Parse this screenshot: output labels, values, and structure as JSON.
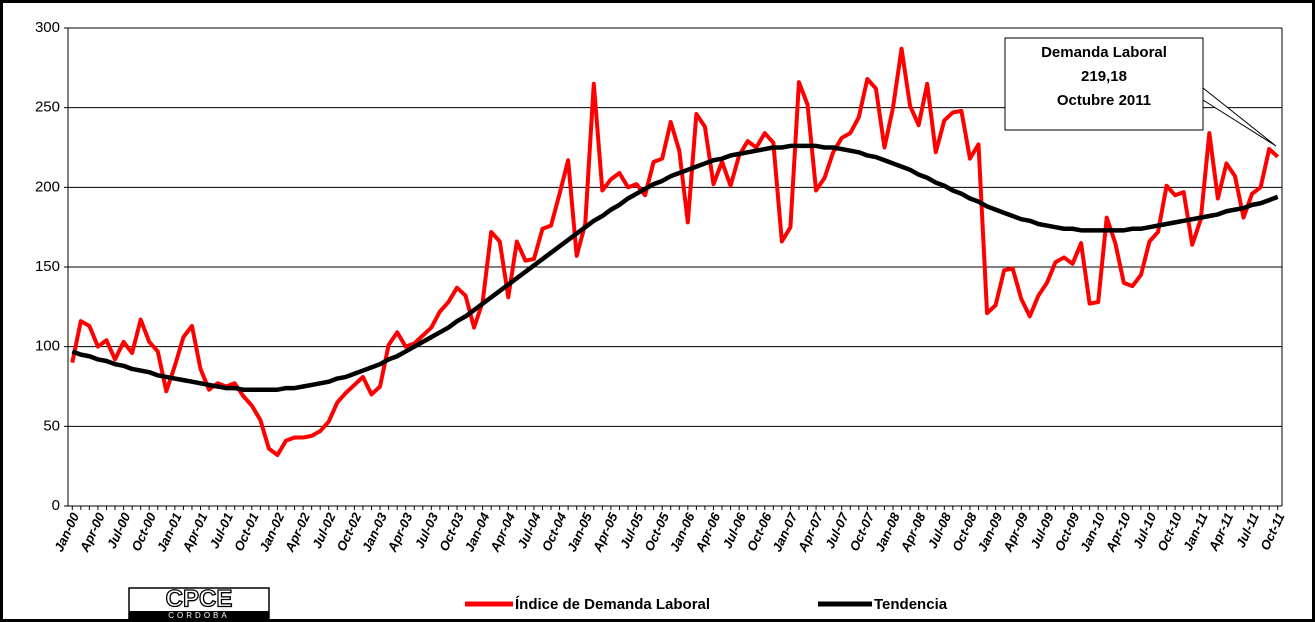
{
  "chart_data": {
    "type": "line",
    "categories": [
      "Jan-00",
      null,
      null,
      "Apr-00",
      null,
      null,
      "Jul-00",
      null,
      null,
      "Oct-00",
      null,
      null,
      "Jan-01",
      null,
      null,
      "Apr-01",
      null,
      null,
      "Jul-01",
      null,
      null,
      "Oct-01",
      null,
      null,
      "Jan-02",
      null,
      null,
      "Apr-02",
      null,
      null,
      "Jul-02",
      null,
      null,
      "Oct-02",
      null,
      null,
      "Jan-03",
      null,
      null,
      "Apr-03",
      null,
      null,
      "Jul-03",
      null,
      null,
      "Oct-03",
      null,
      null,
      "Jan-04",
      null,
      null,
      "Apr-04",
      null,
      null,
      "Jul-04",
      null,
      null,
      "Oct-04",
      null,
      null,
      "Jan-05",
      null,
      null,
      "Apr-05",
      null,
      null,
      "Jul-05",
      null,
      null,
      "Oct-05",
      null,
      null,
      "Jan-06",
      null,
      null,
      "Apr-06",
      null,
      null,
      "Jul-06",
      null,
      null,
      "Oct-06",
      null,
      null,
      "Jan-07",
      null,
      null,
      "Apr-07",
      null,
      null,
      "Jul-07",
      null,
      null,
      "Oct-07",
      null,
      null,
      "Jan-08",
      null,
      null,
      "Apr-08",
      null,
      null,
      "Jul-08",
      null,
      null,
      "Oct-08",
      null,
      null,
      "Jan-09",
      null,
      null,
      "Apr-09",
      null,
      null,
      "Jul-09",
      null,
      null,
      "Oct-09",
      null,
      null,
      "Jan-10",
      null,
      null,
      "Apr-10",
      null,
      null,
      "Jul-10",
      null,
      null,
      "Oct-10",
      null,
      null,
      "Jan-11",
      null,
      null,
      "Apr-11",
      null,
      null,
      "Jul-11",
      null,
      null,
      "Oct-11"
    ],
    "series": [
      {
        "name": "Índice de Demanda Laboral",
        "color": "#ff0000",
        "values": [
          90,
          116,
          113,
          100,
          104,
          92,
          103,
          96,
          117,
          103,
          97,
          72,
          88,
          106,
          113,
          86,
          73,
          77,
          75,
          77,
          69,
          63,
          54,
          36,
          32,
          41,
          43,
          43,
          44,
          47,
          53,
          65,
          71,
          76,
          81,
          70,
          75,
          101,
          109,
          100,
          102,
          107,
          112,
          122,
          128,
          137,
          132,
          112,
          128,
          172,
          166,
          131,
          166,
          154,
          155,
          174,
          176,
          196,
          217,
          157,
          177,
          265,
          198,
          205,
          209,
          200,
          202,
          195,
          216,
          218,
          241,
          223,
          178,
          246,
          238,
          202,
          216,
          201,
          220,
          229,
          225,
          234,
          228,
          166,
          175,
          266,
          252,
          198,
          206,
          222,
          231,
          234,
          244,
          268,
          262,
          225,
          250,
          287,
          251,
          239,
          265,
          222,
          242,
          247,
          248,
          218,
          227,
          121,
          126,
          148,
          149,
          130,
          119,
          132,
          140,
          153,
          156,
          152,
          165,
          127,
          128,
          181,
          165,
          140,
          138,
          145,
          166,
          172,
          201,
          195,
          197,
          164,
          180,
          234,
          193,
          215,
          207,
          181,
          196,
          200,
          224,
          219.18
        ]
      },
      {
        "name": "Tendencia",
        "color": "#000000",
        "values": [
          97,
          95,
          94,
          92,
          91,
          89,
          88,
          86,
          85,
          84,
          82,
          81,
          80,
          79,
          78,
          77,
          76,
          75,
          74,
          74,
          73,
          73,
          73,
          73,
          73,
          74,
          74,
          75,
          76,
          77,
          78,
          80,
          81,
          83,
          85,
          87,
          89,
          92,
          94,
          97,
          100,
          103,
          106,
          109,
          112,
          116,
          119,
          123,
          127,
          131,
          135,
          139,
          143,
          147,
          151,
          155,
          159,
          163,
          167,
          171,
          175,
          179,
          182,
          186,
          189,
          193,
          196,
          199,
          202,
          204,
          207,
          209,
          211,
          213,
          215,
          217,
          218,
          220,
          221,
          222,
          223,
          224,
          225,
          225,
          226,
          226,
          226,
          226,
          225,
          225,
          224,
          223,
          222,
          220,
          219,
          217,
          215,
          213,
          211,
          208,
          206,
          203,
          201,
          198,
          196,
          193,
          191,
          188,
          186,
          184,
          182,
          180,
          179,
          177,
          176,
          175,
          174,
          174,
          173,
          173,
          173,
          173,
          173,
          173,
          174,
          174,
          175,
          176,
          177,
          178,
          179,
          180,
          181,
          182,
          183,
          185,
          186,
          187,
          189,
          190,
          192,
          194
        ]
      }
    ],
    "ylim": [
      0,
      300
    ],
    "yticks": [
      0,
      50,
      100,
      150,
      200,
      250,
      300
    ],
    "grid": true,
    "legend": "bottom",
    "annotation": [
      "Demanda Laboral",
      "219,18",
      "Octubre 2011"
    ],
    "logo": {
      "text": "CPCE",
      "subtext": "CORDOBA"
    }
  }
}
